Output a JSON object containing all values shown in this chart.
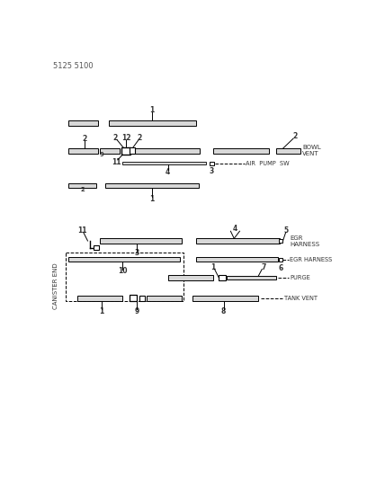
{
  "background_color": "#ffffff",
  "line_color": "#000000",
  "text_color": "#333333",
  "hose_fill": "#d8d8d8",
  "hose_edge": "#000000",
  "title": "5125 5100",
  "side_label": "CANISTER END",
  "labels": {
    "bowl_vent": "BOWL\nVENT",
    "air_pump_sw": "AIR  PUMP  SW",
    "egr_harness1": "EGR\nHARNESS",
    "egr_harness2": "EGR HARNESS",
    "purge": "PURGE",
    "tank_vent": "TANK VENT"
  }
}
